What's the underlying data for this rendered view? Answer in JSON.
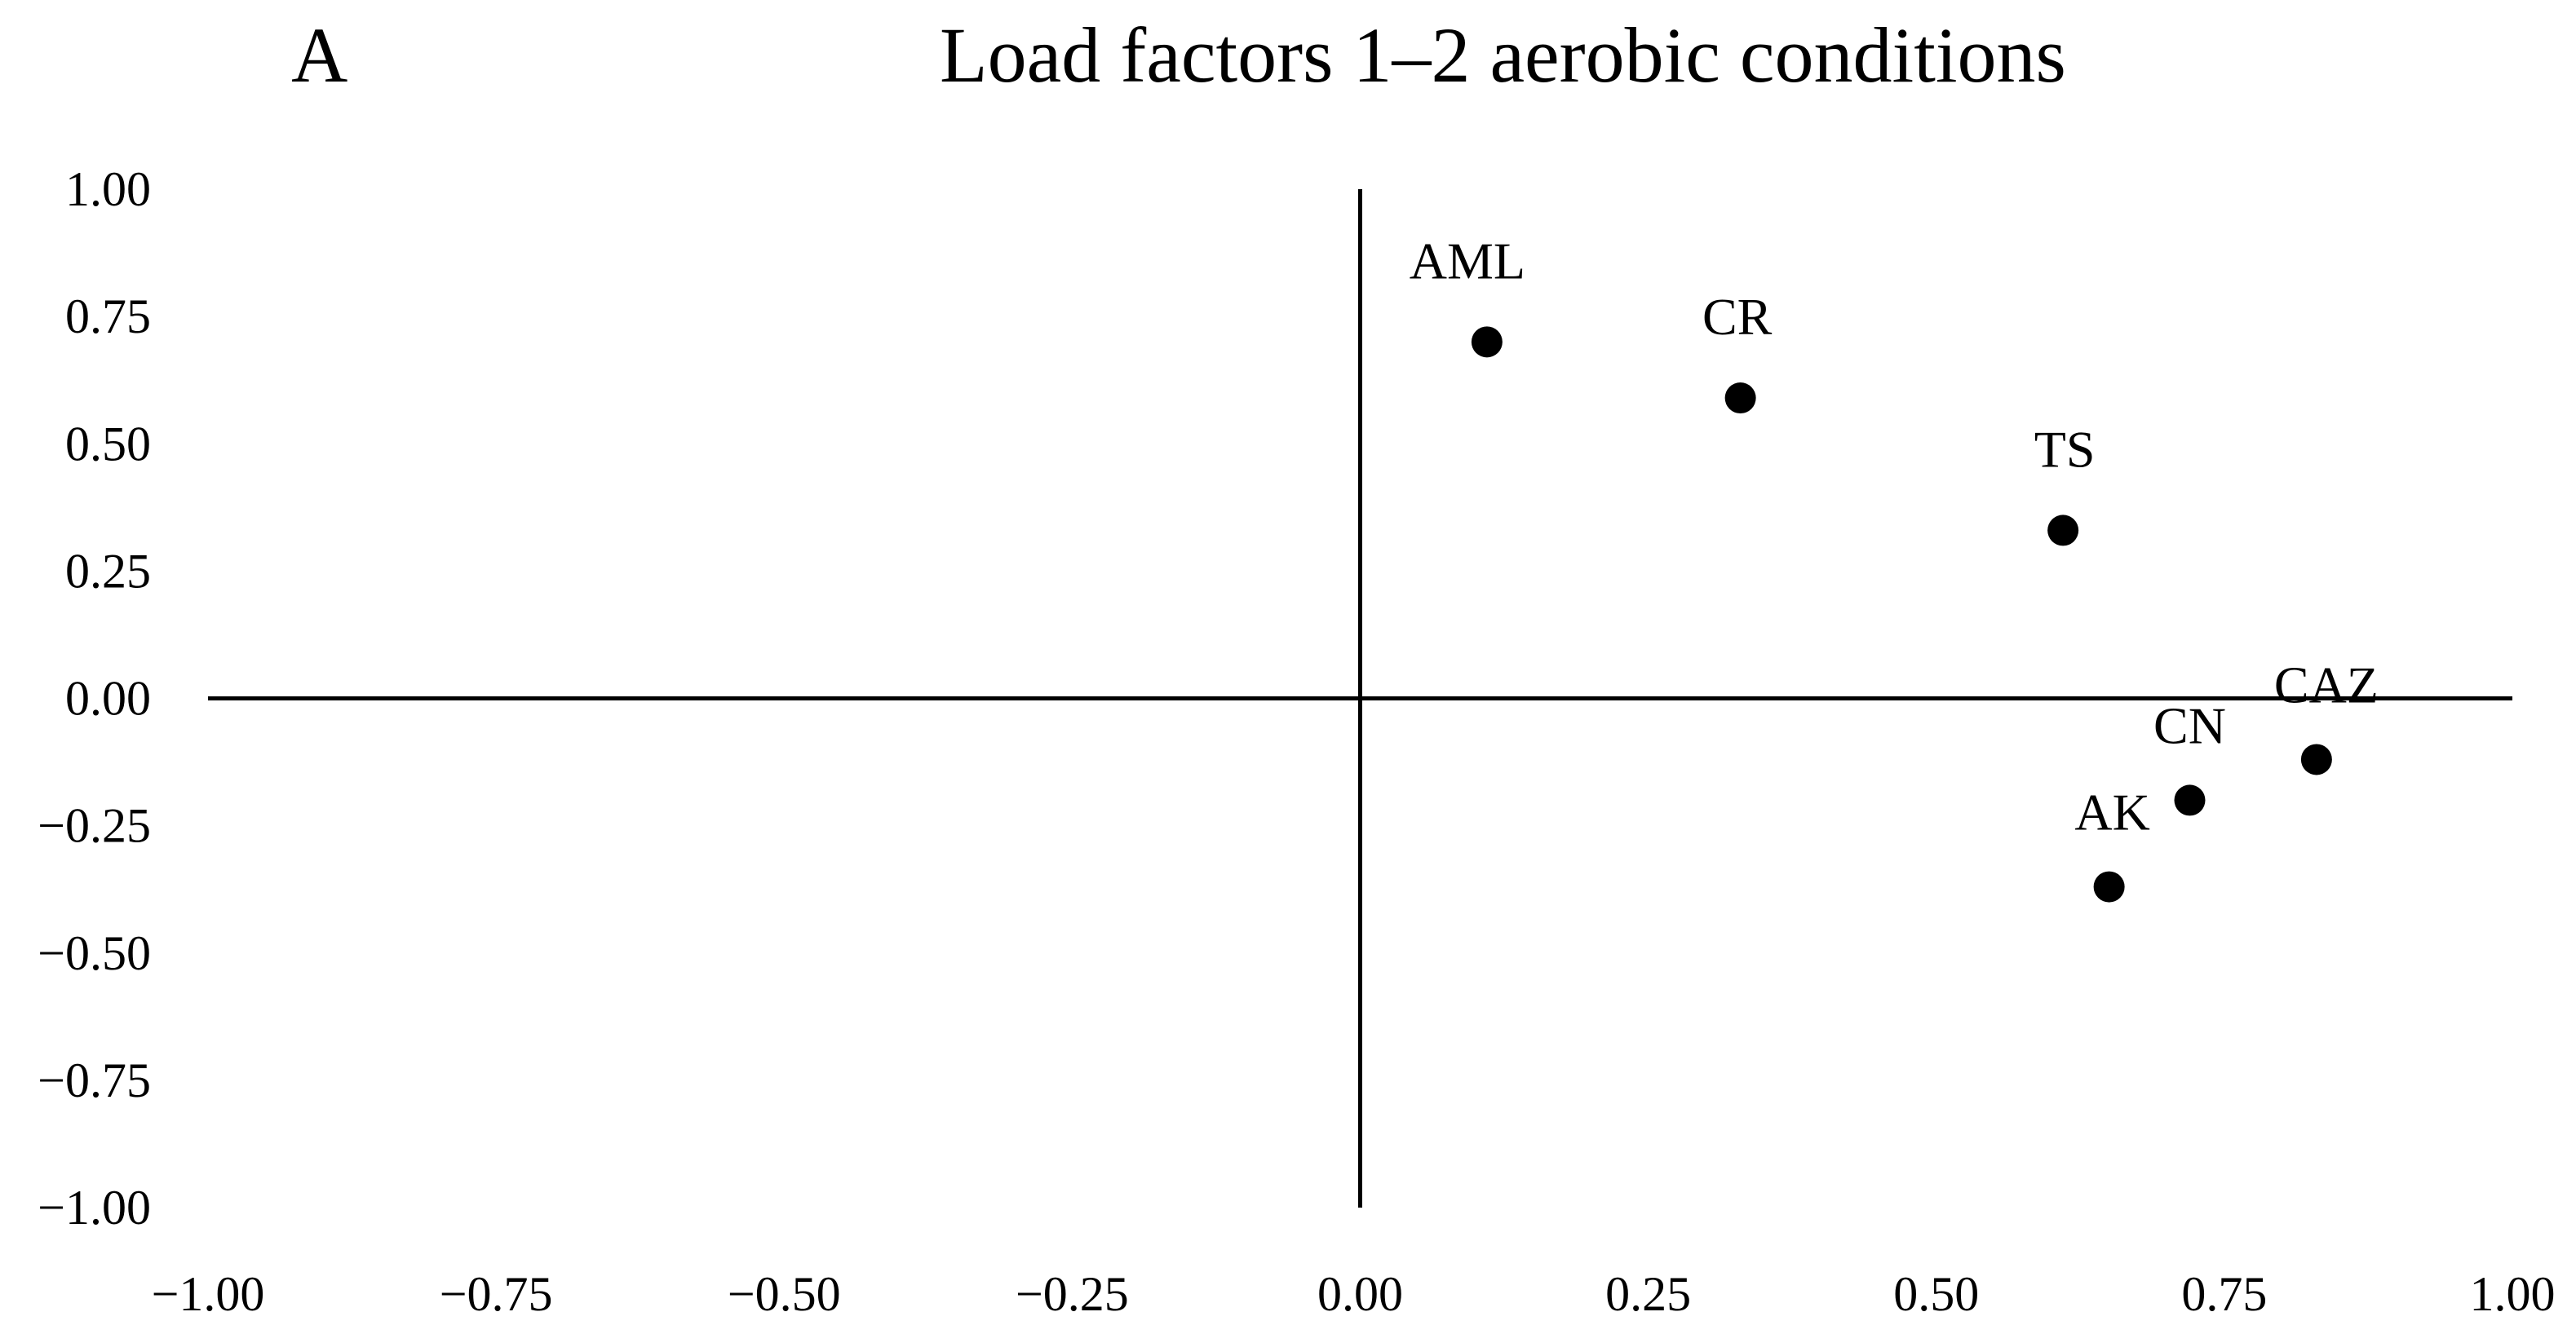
{
  "panel_letter": "A",
  "chart_data": {
    "type": "scatter",
    "title": "Load factors 1–2 aerobic conditions",
    "xlabel": "",
    "ylabel": "",
    "xlim": [
      -1.0,
      1.0
    ],
    "ylim": [
      -1.0,
      1.0
    ],
    "grid": false,
    "legend": "none",
    "x_ticks": [
      "−1.00",
      "−0.75",
      "−0.50",
      "−0.25",
      "0.00",
      "0.25",
      "0.50",
      "0.75",
      "1.00"
    ],
    "x_tick_values": [
      -1.0,
      -0.75,
      -0.5,
      -0.25,
      0.0,
      0.25,
      0.5,
      0.75,
      1.0
    ],
    "y_ticks": [
      "1.00",
      "0.75",
      "0.50",
      "0.25",
      "0.00",
      "−0.25",
      "−0.50",
      "−0.75",
      "−1.00"
    ],
    "y_tick_values": [
      1.0,
      0.75,
      0.5,
      0.25,
      0.0,
      -0.25,
      -0.5,
      -0.75,
      -1.0
    ],
    "marker_color": "#000000",
    "points": [
      {
        "label": "AML",
        "x": 0.11,
        "y": 0.7
      },
      {
        "label": "CR",
        "x": 0.33,
        "y": 0.59
      },
      {
        "label": "TS",
        "x": 0.61,
        "y": 0.33
      },
      {
        "label": "CAZ",
        "x": 0.83,
        "y": -0.12
      },
      {
        "label": "CN",
        "x": 0.72,
        "y": -0.2
      },
      {
        "label": "AK",
        "x": 0.65,
        "y": -0.37
      }
    ]
  }
}
